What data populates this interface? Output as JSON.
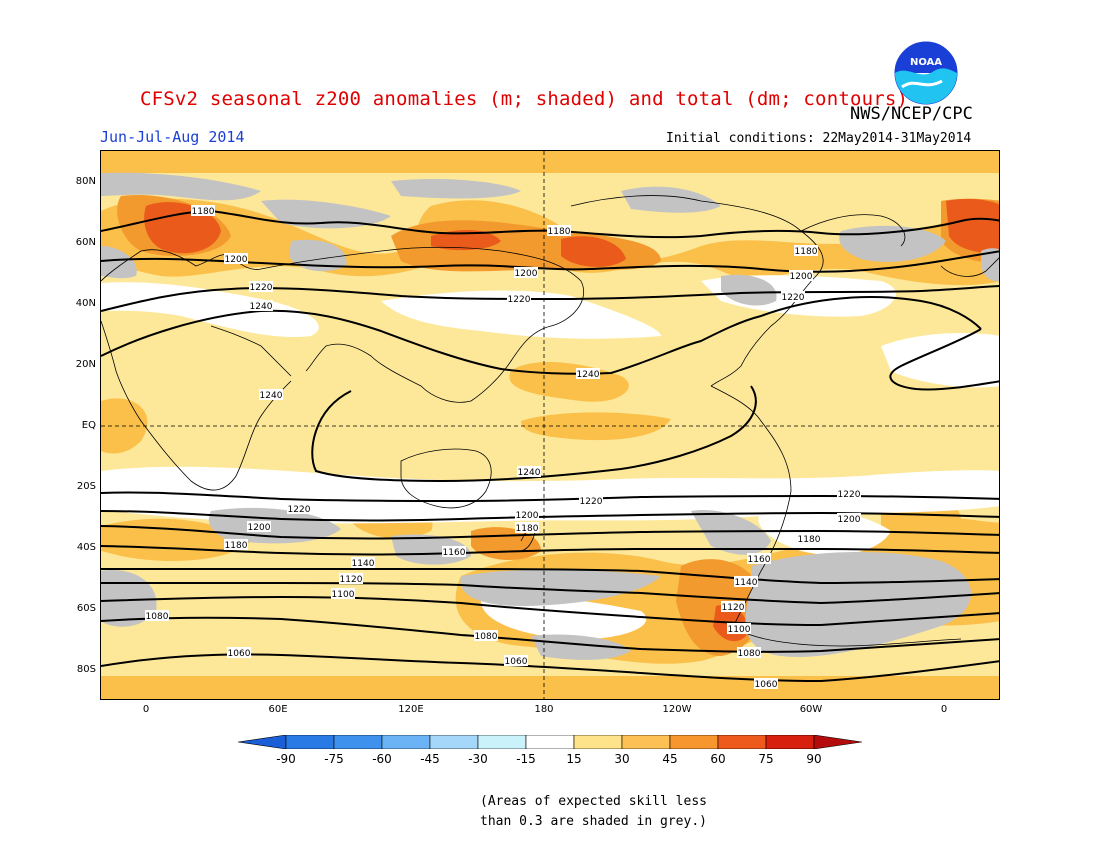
{
  "header": {
    "title": "CFSv2 seasonal z200 anomalies (m; shaded) and total (dm; contours)",
    "org": "NWS/NCEP/CPC",
    "period": "Jun-Jul-Aug 2014",
    "initial_conditions": "Initial conditions: 22May2014-31May2014",
    "logo_text": "NOAA"
  },
  "axes": {
    "lat_labels": [
      "80N",
      "60N",
      "40N",
      "20N",
      "EQ",
      "20S",
      "40S",
      "60S",
      "80S"
    ],
    "lon_labels": [
      "0",
      "60E",
      "120E",
      "180",
      "120W",
      "60W",
      "0"
    ]
  },
  "contours": {
    "labels": [
      "1180",
      "1200",
      "1220",
      "1240",
      "1180",
      "1200",
      "1220",
      "1180",
      "1200",
      "1220",
      "1240",
      "1240",
      "1240",
      "1220",
      "1220",
      "1220",
      "1200",
      "1200",
      "1200",
      "1180",
      "1180",
      "1180",
      "1160",
      "1160",
      "1140",
      "1140",
      "1120",
      "1120",
      "1100",
      "1100",
      "1080",
      "1080",
      "1080",
      "1060",
      "1060",
      "1060"
    ]
  },
  "colorbar": {
    "labels": [
      "-90",
      "-75",
      "-60",
      "-45",
      "-30",
      "-15",
      "15",
      "30",
      "45",
      "60",
      "75",
      "90"
    ],
    "colors": [
      "#1b5fd8",
      "#2a7ae6",
      "#3f91ee",
      "#6cb3f5",
      "#a4d7f9",
      "#c9f2fb",
      "#ffffff",
      "#ffe38a",
      "#fdc054",
      "#f7962e",
      "#ee5a1c",
      "#d8200e",
      "#b40c0c"
    ]
  },
  "shading": {
    "weak_positive": "#fde89a",
    "moderate_positive": "#fbc04a",
    "strong_positive": "#f39a2f",
    "very_strong_positive": "#ea5b1b",
    "low_skill": "#c3c3c3",
    "near_zero": "#ffffff"
  },
  "footnote": [
    "(Areas of expected skill less",
    "than 0.3 are shaded in grey.)"
  ]
}
